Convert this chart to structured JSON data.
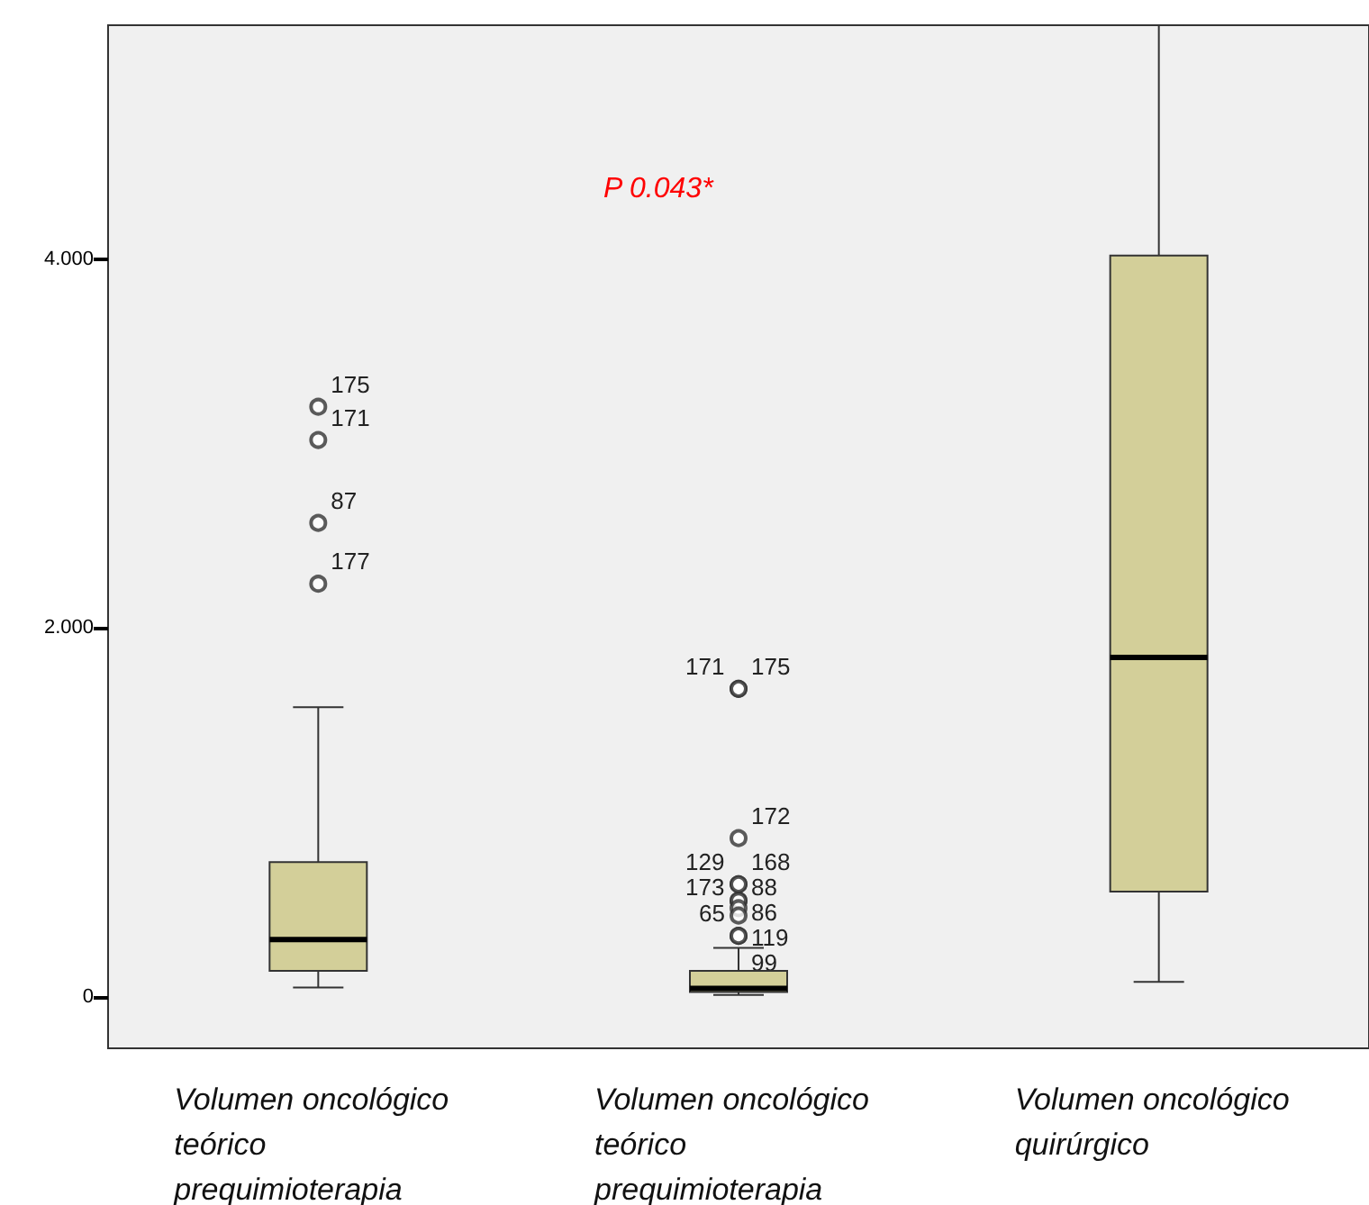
{
  "chart_data": {
    "type": "box",
    "categories": [
      "Volumen oncológico teórico prequimioterapia",
      "Volumen oncológico teórico prequimioterapia",
      "Volumen oncológico quirúrgico"
    ],
    "boxes": [
      {
        "low": 0.05,
        "q1": 0.14,
        "median": 0.31,
        "q3": 0.73,
        "high": 1.57,
        "outliers": [
          3.2,
          3.02,
          2.57,
          2.24
        ]
      },
      {
        "low": 0.01,
        "q1": 0.025,
        "median": 0.045,
        "q3": 0.14,
        "high": 0.265,
        "outliers": [
          1.67,
          1.67,
          0.86,
          0.61,
          0.61,
          0.52,
          0.52,
          0.48,
          0.44,
          0.33,
          0.33
        ]
      },
      {
        "low": 0.08,
        "q1": 0.57,
        "median": 1.84,
        "q3": 4.02,
        "high": 5.27
      }
    ],
    "color": "#d3cf99",
    "ylim": [
      -0.28,
      5.27
    ],
    "yticks": [
      0,
      {
        "value": 2,
        "label": "2.000"
      },
      {
        "value": 4,
        "label": "4.000"
      }
    ],
    "grid": false,
    "annotations": [
      "P 0.043*",
      "175",
      "171",
      "87",
      "177",
      "175",
      "171",
      "172",
      "168",
      "129",
      "88",
      "173",
      "86",
      "119",
      "99",
      "65"
    ]
  }
}
